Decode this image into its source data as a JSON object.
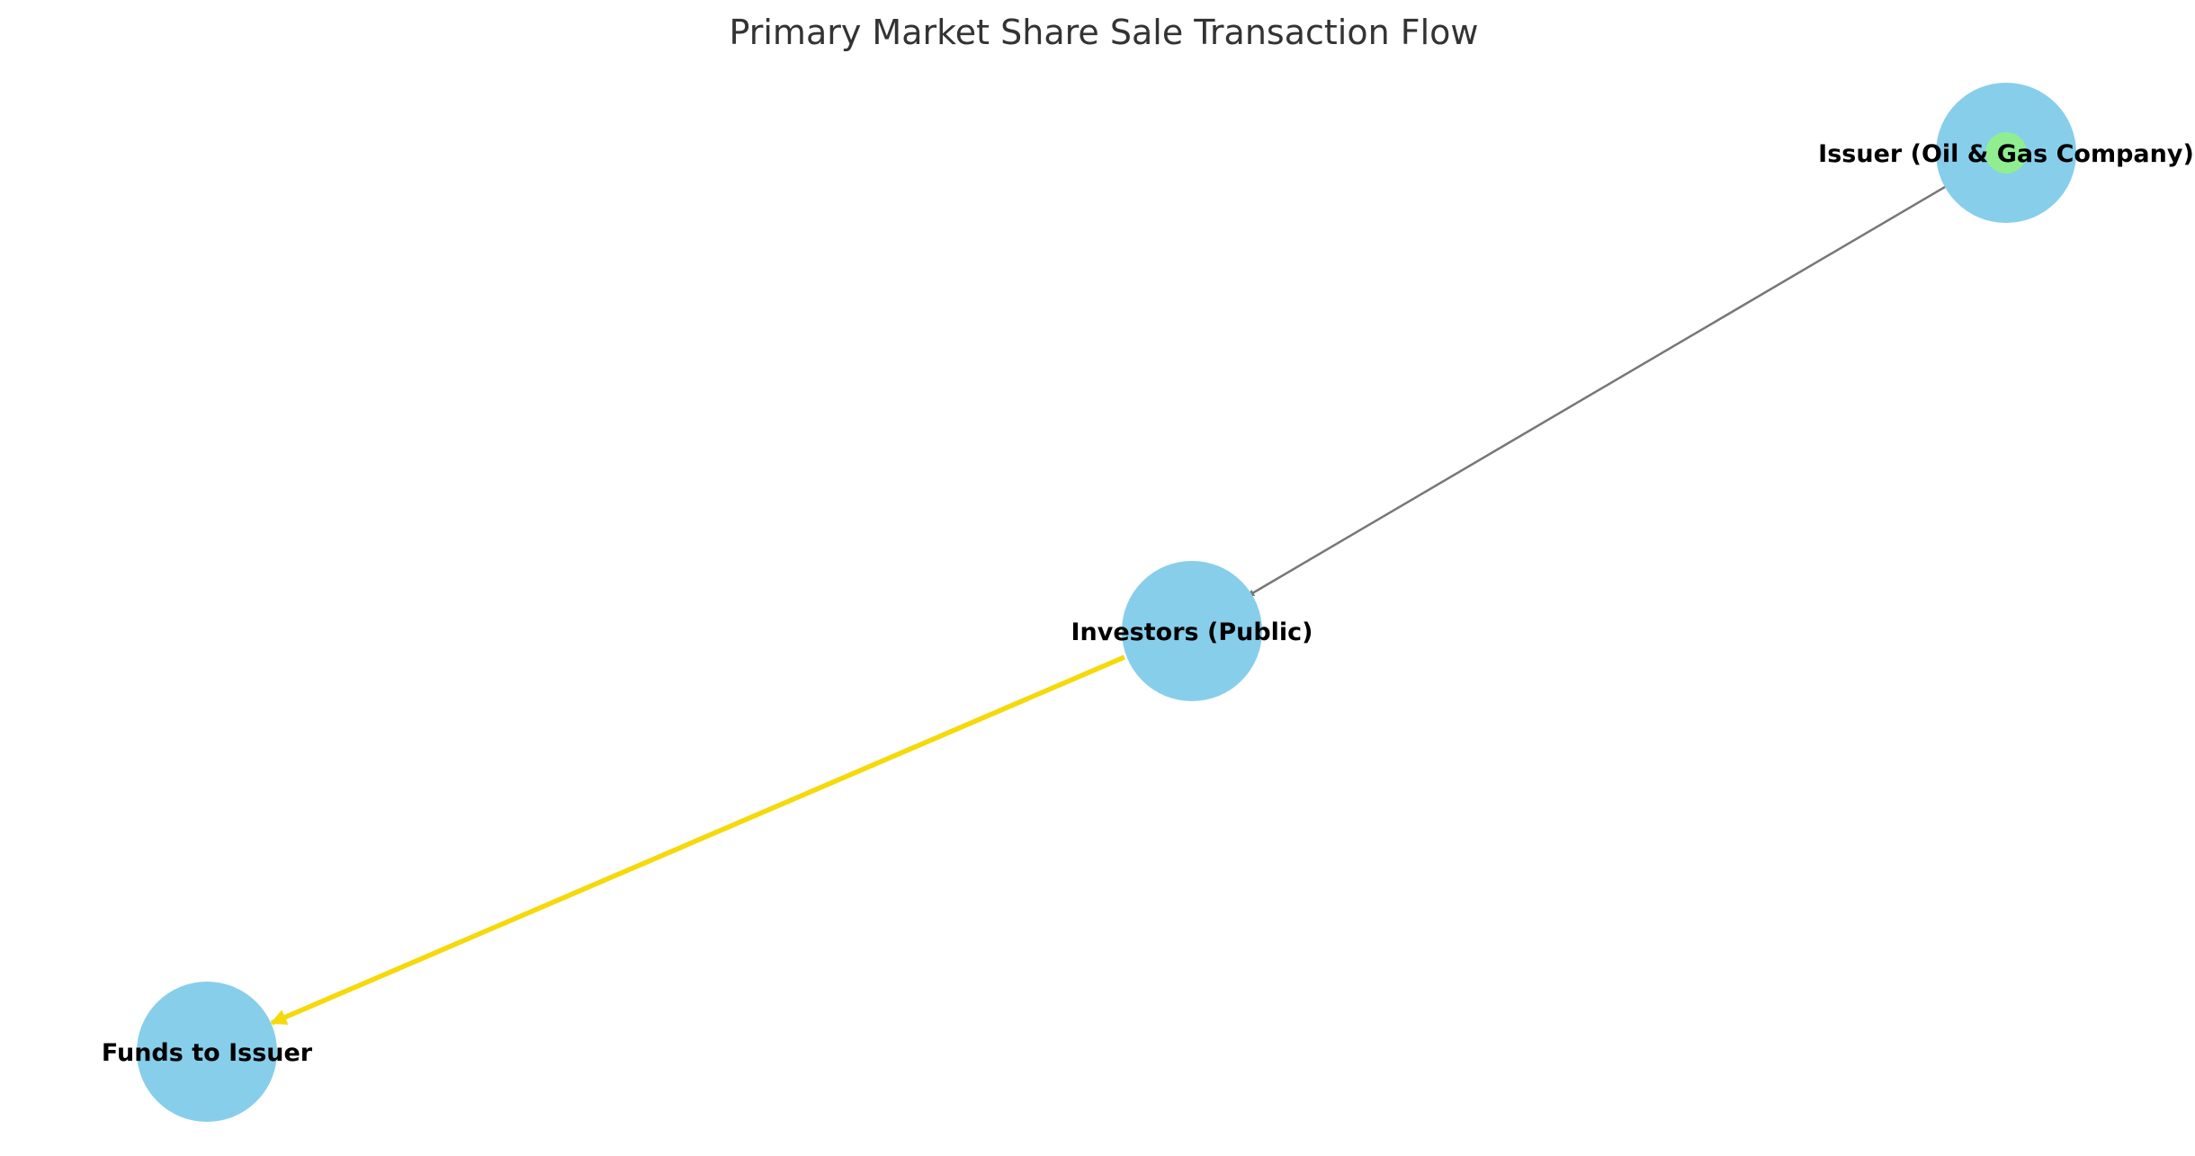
{
  "title": "Primary Market Share Sale Transaction Flow",
  "nodes": [
    {
      "id": "issuer",
      "label": "Issuer (Oil & Gas Company)",
      "color": "#87CEEB",
      "inner_color": "#90EE90"
    },
    {
      "id": "investors",
      "label": "Investors (Public)",
      "color": "#87CEEB"
    },
    {
      "id": "funds",
      "label": "Funds to Issuer",
      "color": "#87CEEB"
    }
  ],
  "edges": [
    {
      "from": "issuer",
      "to": "investors",
      "color": "#777777"
    },
    {
      "from": "investors",
      "to": "funds",
      "color": "#F5D90A"
    }
  ]
}
